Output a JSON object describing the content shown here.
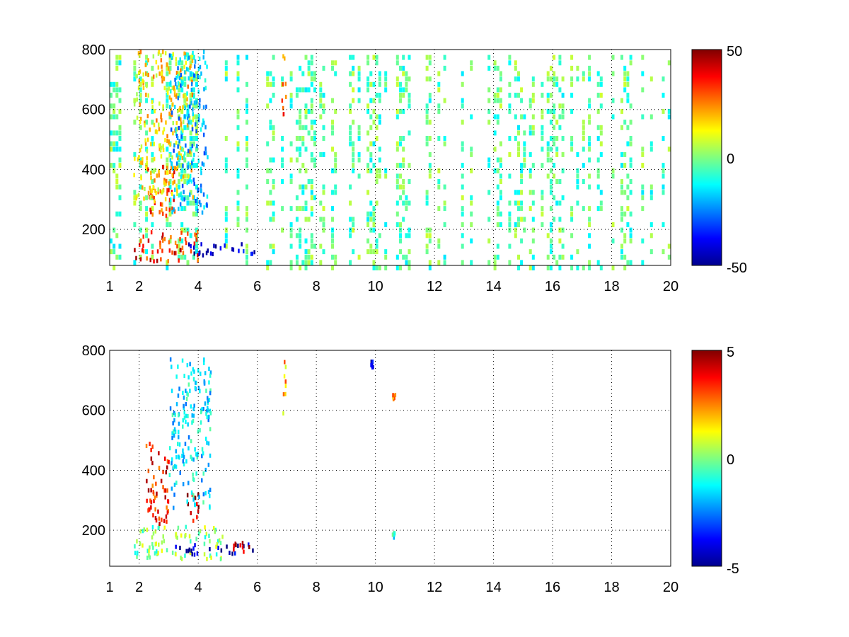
{
  "chart_data": [
    {
      "type": "heatmap",
      "title": "",
      "xlabel": "",
      "ylabel": "",
      "x_ticks": [
        1,
        2,
        4,
        6,
        8,
        10,
        12,
        14,
        16,
        18,
        20
      ],
      "y_ticks": [
        200,
        400,
        600,
        800
      ],
      "xlim": [
        1,
        20
      ],
      "ylim": [
        80,
        800
      ],
      "grid": true,
      "colormap": "jet",
      "colorbar": {
        "min": -50,
        "max": 50,
        "ticks": [
          50,
          0,
          -50
        ]
      },
      "features": [
        {
          "x": [
            1.8,
            4.0
          ],
          "y": [
            100,
            200
          ],
          "level": 35
        },
        {
          "x": [
            2.2,
            3.2
          ],
          "y": [
            250,
            420
          ],
          "level": 30
        },
        {
          "x": [
            1.8,
            3.8
          ],
          "y": [
            300,
            800
          ],
          "level": 15
        },
        {
          "x": [
            3.0,
            4.3
          ],
          "y": [
            260,
            800
          ],
          "level": -20
        },
        {
          "x": [
            3.5,
            5.9
          ],
          "y": [
            120,
            160
          ],
          "level": -40
        },
        {
          "x": [
            6.8,
            6.95
          ],
          "y": [
            560,
            790
          ],
          "level": 30
        }
      ],
      "background_noise": {
        "x": [
          1,
          20
        ],
        "level_range": [
          -15,
          8
        ],
        "density": 0.35
      }
    },
    {
      "type": "heatmap",
      "title": "",
      "xlabel": "",
      "ylabel": "",
      "x_ticks": [
        1,
        2,
        4,
        6,
        8,
        10,
        12,
        14,
        16,
        18,
        20
      ],
      "y_ticks": [
        200,
        400,
        600,
        800
      ],
      "xlim": [
        1,
        20
      ],
      "ylim": [
        80,
        800
      ],
      "grid": true,
      "colormap": "jet",
      "colorbar": {
        "min": -5,
        "max": 5,
        "ticks": [
          5,
          0,
          -5
        ]
      },
      "features": [
        {
          "x": [
            1.8,
            4.8
          ],
          "y": [
            110,
            220
          ],
          "level": 0
        },
        {
          "x": [
            3.2,
            5.9
          ],
          "y": [
            125,
            160
          ],
          "level": -4.5
        },
        {
          "x": [
            5.0,
            5.9
          ],
          "y": [
            130,
            170
          ],
          "level": 4
        },
        {
          "x": [
            2.2,
            3.0
          ],
          "y": [
            220,
            500
          ],
          "level": 3.5
        },
        {
          "x": [
            3.6,
            4.1
          ],
          "y": [
            230,
            330
          ],
          "level": 4.5
        },
        {
          "x": [
            3.0,
            4.4
          ],
          "y": [
            280,
            780
          ],
          "level": -1.5
        },
        {
          "x": [
            6.85,
            6.95
          ],
          "y": [
            590,
            770
          ],
          "level": 2
        },
        {
          "x": [
            9.8,
            9.9
          ],
          "y": [
            745,
            770
          ],
          "level": -4
        },
        {
          "x": [
            10.55,
            10.65
          ],
          "y": [
            640,
            660
          ],
          "level": 2.5
        },
        {
          "x": [
            10.55,
            10.65
          ],
          "y": [
            180,
            200
          ],
          "level": -1
        }
      ]
    }
  ]
}
